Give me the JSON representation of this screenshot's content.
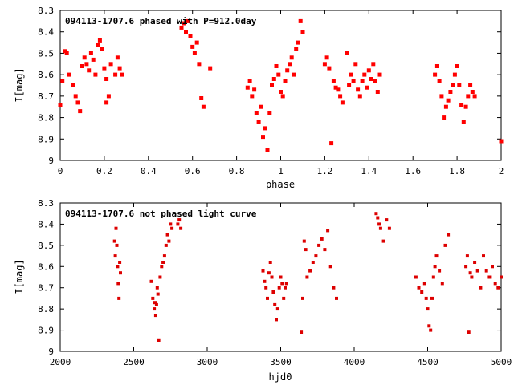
{
  "chart_data": [
    {
      "type": "scatter",
      "title": "094113-1707.6 phased with P=912.0day",
      "xlabel": "phase",
      "ylabel": "I[mag]",
      "xlim": [
        0,
        2
      ],
      "ylim": [
        9,
        8.3
      ],
      "y_inverted": true,
      "xticks": [
        "0",
        "0.2",
        "0.4",
        "0.6",
        "0.8",
        "1",
        "1.2",
        "1.4",
        "1.6",
        "1.8",
        "2"
      ],
      "yticks": [
        "8.3",
        "8.4",
        "8.5",
        "8.6",
        "8.7",
        "8.8",
        "8.9",
        "9"
      ],
      "marker_color": "#ff0000",
      "x": [
        0.0,
        0.01,
        0.02,
        0.03,
        0.04,
        0.06,
        0.07,
        0.08,
        0.09,
        0.1,
        0.11,
        0.12,
        0.13,
        0.14,
        0.15,
        0.16,
        0.17,
        0.18,
        0.19,
        0.2,
        0.21,
        0.21,
        0.22,
        0.23,
        0.25,
        0.26,
        0.27,
        0.28,
        0.55,
        0.56,
        0.57,
        0.58,
        0.59,
        0.6,
        0.61,
        0.62,
        0.63,
        0.64,
        0.65,
        0.68,
        0.85,
        0.86,
        0.87,
        0.88,
        0.89,
        0.9,
        0.91,
        0.92,
        0.93,
        0.94,
        0.95,
        0.96,
        0.97,
        0.98,
        0.99,
        1.0,
        1.01,
        1.02,
        1.03,
        1.04,
        1.05,
        1.06,
        1.07,
        1.08,
        1.09,
        1.1,
        1.2,
        1.21,
        1.22,
        1.23,
        1.24,
        1.25,
        1.26,
        1.27,
        1.28,
        1.3,
        1.31,
        1.32,
        1.33,
        1.34,
        1.35,
        1.36,
        1.37,
        1.38,
        1.39,
        1.4,
        1.41,
        1.42,
        1.43,
        1.44,
        1.45,
        1.7,
        1.71,
        1.72,
        1.73,
        1.74,
        1.75,
        1.76,
        1.77,
        1.78,
        1.79,
        1.8,
        1.81,
        1.82,
        1.83,
        1.84,
        1.85,
        1.86,
        1.87,
        1.88,
        2.0
      ],
      "y": [
        8.74,
        8.63,
        8.49,
        8.5,
        8.6,
        8.65,
        8.7,
        8.73,
        8.77,
        8.56,
        8.52,
        8.55,
        8.58,
        8.5,
        8.53,
        8.6,
        8.46,
        8.44,
        8.48,
        8.57,
        8.62,
        8.73,
        8.7,
        8.55,
        8.6,
        8.52,
        8.57,
        8.6,
        8.38,
        8.36,
        8.4,
        8.35,
        8.42,
        8.47,
        8.5,
        8.45,
        8.55,
        8.71,
        8.75,
        8.57,
        8.66,
        8.63,
        8.7,
        8.67,
        8.78,
        8.82,
        8.75,
        8.89,
        8.85,
        8.95,
        8.78,
        8.65,
        8.62,
        8.56,
        8.6,
        8.68,
        8.7,
        8.63,
        8.58,
        8.55,
        8.52,
        8.6,
        8.48,
        8.45,
        8.35,
        8.4,
        8.55,
        8.52,
        8.57,
        8.92,
        8.63,
        8.66,
        8.67,
        8.7,
        8.73,
        8.5,
        8.65,
        8.6,
        8.63,
        8.55,
        8.67,
        8.7,
        8.63,
        8.6,
        8.66,
        8.58,
        8.62,
        8.55,
        8.63,
        8.68,
        8.6,
        8.6,
        8.56,
        8.63,
        8.7,
        8.8,
        8.75,
        8.72,
        8.68,
        8.65,
        8.6,
        8.56,
        8.65,
        8.74,
        8.82,
        8.75,
        8.7,
        8.65,
        8.68,
        8.7,
        8.91
      ]
    },
    {
      "type": "scatter",
      "title": "094113-1707.6 not phased light curve",
      "xlabel": "hjd0",
      "ylabel": "I[mag]",
      "xlim": [
        2000,
        5000
      ],
      "ylim": [
        9,
        8.3
      ],
      "y_inverted": true,
      "xticks": [
        "2000",
        "2500",
        "3000",
        "3500",
        "4000",
        "4500",
        "5000"
      ],
      "yticks": [
        "8.3",
        "8.4",
        "8.5",
        "8.6",
        "8.7",
        "8.8",
        "8.9",
        "9"
      ],
      "marker_color": "#dd0000",
      "x": [
        2370,
        2375,
        2380,
        2385,
        2390,
        2395,
        2400,
        2405,
        2410,
        2620,
        2630,
        2640,
        2645,
        2650,
        2655,
        2660,
        2665,
        2670,
        2680,
        2690,
        2700,
        2710,
        2720,
        2730,
        2740,
        2750,
        2760,
        2800,
        2810,
        2820,
        3380,
        3390,
        3400,
        3410,
        3420,
        3430,
        3440,
        3450,
        3460,
        3470,
        3480,
        3490,
        3500,
        3510,
        3520,
        3530,
        3540,
        3640,
        3650,
        3660,
        3670,
        3680,
        3700,
        3720,
        3740,
        3760,
        3780,
        3800,
        3820,
        3840,
        3860,
        3880,
        4150,
        4160,
        4170,
        4180,
        4200,
        4220,
        4240,
        4420,
        4440,
        4460,
        4480,
        4490,
        4500,
        4510,
        4520,
        4530,
        4540,
        4550,
        4560,
        4580,
        4600,
        4620,
        4640,
        4760,
        4770,
        4780,
        4790,
        4800,
        4820,
        4840,
        4860,
        4880,
        4900,
        4920,
        4940,
        4960,
        4980,
        5000
      ],
      "y": [
        8.48,
        8.55,
        8.42,
        8.5,
        8.6,
        8.68,
        8.75,
        8.58,
        8.63,
        8.67,
        8.75,
        8.8,
        8.77,
        8.83,
        8.78,
        8.7,
        8.73,
        8.95,
        8.65,
        8.6,
        8.58,
        8.55,
        8.5,
        8.45,
        8.48,
        8.4,
        8.42,
        8.4,
        8.38,
        8.42,
        8.62,
        8.67,
        8.7,
        8.75,
        8.63,
        8.58,
        8.65,
        8.72,
        8.78,
        8.85,
        8.8,
        8.7,
        8.65,
        8.68,
        8.75,
        8.7,
        8.68,
        8.91,
        8.75,
        8.48,
        8.52,
        8.65,
        8.62,
        8.58,
        8.55,
        8.5,
        8.47,
        8.52,
        8.43,
        8.6,
        8.7,
        8.75,
        8.35,
        8.37,
        8.4,
        8.42,
        8.48,
        8.38,
        8.42,
        8.65,
        8.7,
        8.72,
        8.68,
        8.75,
        8.8,
        8.88,
        8.9,
        8.75,
        8.65,
        8.6,
        8.55,
        8.62,
        8.68,
        8.5,
        8.45,
        8.6,
        8.55,
        8.91,
        8.63,
        8.65,
        8.58,
        8.62,
        8.7,
        8.55,
        8.62,
        8.65,
        8.6,
        8.68,
        8.7,
        8.65
      ]
    }
  ]
}
